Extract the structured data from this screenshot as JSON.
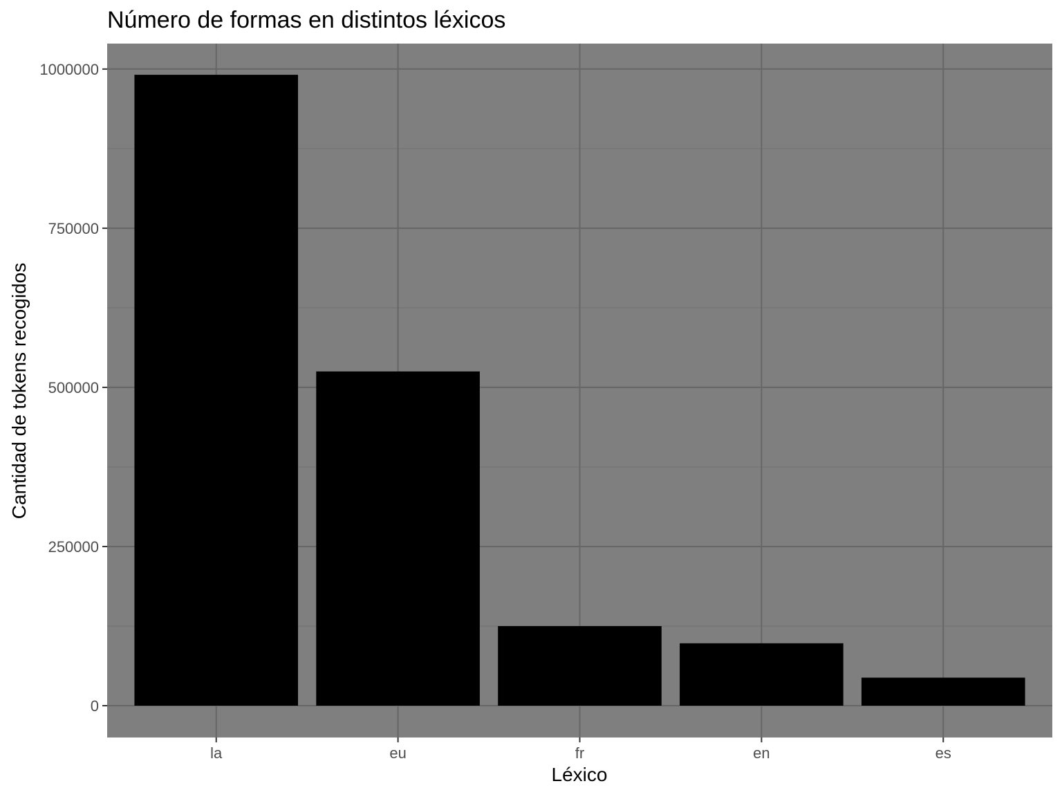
{
  "chart_data": {
    "type": "bar",
    "title": "Número de formas en distintos léxicos",
    "xlabel": "Léxico",
    "ylabel": "Cantidad de tokens recogidos",
    "categories": [
      "la",
      "eu",
      "fr",
      "en",
      "es"
    ],
    "values": [
      991000,
      525000,
      125000,
      98000,
      44000
    ],
    "ylim": [
      -50000,
      1040000
    ],
    "yticks": [
      0,
      250000,
      500000,
      750000,
      1000000
    ],
    "ytick_labels": [
      "0",
      "250000",
      "500000",
      "750000",
      "1000000"
    ],
    "grid": true,
    "legend": "none",
    "colors": {
      "panel": "#7f7f7f",
      "grid_major": "#666666",
      "grid_minor": "#737373",
      "bar": "#000000",
      "tick_text": "#4d4d4d",
      "tick_mark": "#333333"
    }
  }
}
